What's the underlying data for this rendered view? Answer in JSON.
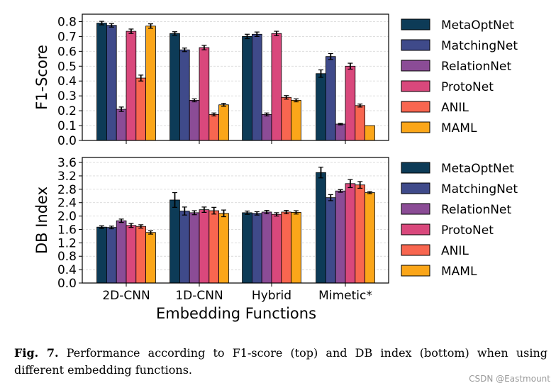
{
  "chart_data": [
    {
      "type": "bar",
      "panel": "top",
      "ylabel": "F1-Score",
      "xlabel": "",
      "ylim": [
        0,
        0.85
      ],
      "yticks": [
        "0.0",
        "0.1",
        "0.2",
        "0.3",
        "0.4",
        "0.5",
        "0.6",
        "0.7",
        "0.8"
      ],
      "grid": true,
      "legend_position": "right",
      "categories": [
        "2D-CNN",
        "1D-CNN",
        "Hybrid",
        "Mimetic*"
      ],
      "series": [
        {
          "name": "MetaOptNet",
          "color": "#0d3b57",
          "values": [
            0.79,
            0.72,
            0.7,
            0.45
          ],
          "errors": [
            0.012,
            0.012,
            0.015,
            0.025
          ]
        },
        {
          "name": "MatchingNet",
          "color": "#3f4a8a",
          "values": [
            0.775,
            0.61,
            0.715,
            0.565
          ],
          "errors": [
            0.012,
            0.012,
            0.015,
            0.02
          ]
        },
        {
          "name": "RelationNet",
          "color": "#8b4c96",
          "values": [
            0.21,
            0.27,
            0.175,
            0.11
          ],
          "errors": [
            0.015,
            0.01,
            0.01,
            0.005
          ]
        },
        {
          "name": "ProtoNet",
          "color": "#d9487c",
          "values": [
            0.735,
            0.625,
            0.72,
            0.5
          ],
          "errors": [
            0.015,
            0.015,
            0.015,
            0.02
          ]
        },
        {
          "name": "ANIL",
          "color": "#f86650",
          "values": [
            0.42,
            0.175,
            0.29,
            0.235
          ],
          "errors": [
            0.02,
            0.01,
            0.012,
            0.01
          ]
        },
        {
          "name": "MAML",
          "color": "#fba619",
          "values": [
            0.77,
            0.24,
            0.27,
            0.1
          ],
          "errors": [
            0.015,
            0.01,
            0.01,
            0.0
          ]
        }
      ]
    },
    {
      "type": "bar",
      "panel": "bottom",
      "ylabel": "DB Index",
      "xlabel": "Embedding Functions",
      "ylim": [
        0,
        3.75
      ],
      "yticks": [
        "0.0",
        "0.4",
        "0.8",
        "1.2",
        "1.6",
        "2.0",
        "2.4",
        "2.8",
        "3.2",
        "3.6"
      ],
      "grid": true,
      "legend_position": "right",
      "categories": [
        "2D-CNN",
        "1D-CNN",
        "Hybrid",
        "Mimetic*"
      ],
      "series": [
        {
          "name": "MetaOptNet",
          "color": "#0d3b57",
          "values": [
            1.67,
            2.48,
            2.1,
            3.3
          ],
          "errors": [
            0.04,
            0.22,
            0.05,
            0.16
          ]
        },
        {
          "name": "MatchingNet",
          "color": "#3f4a8a",
          "values": [
            1.66,
            2.15,
            2.08,
            2.55
          ],
          "errors": [
            0.04,
            0.12,
            0.05,
            0.09
          ]
        },
        {
          "name": "RelationNet",
          "color": "#8b4c96",
          "values": [
            1.86,
            2.1,
            2.12,
            2.75
          ],
          "errors": [
            0.05,
            0.06,
            0.05,
            0.04
          ]
        },
        {
          "name": "ProtoNet",
          "color": "#d9487c",
          "values": [
            1.72,
            2.19,
            2.05,
            2.97
          ],
          "errors": [
            0.06,
            0.08,
            0.05,
            0.12
          ]
        },
        {
          "name": "ANIL",
          "color": "#f86650",
          "values": [
            1.69,
            2.16,
            2.12,
            2.93
          ],
          "errors": [
            0.05,
            0.1,
            0.05,
            0.1
          ]
        },
        {
          "name": "MAML",
          "color": "#fba619",
          "values": [
            1.51,
            2.08,
            2.11,
            2.7
          ],
          "errors": [
            0.05,
            0.1,
            0.05,
            0.03
          ]
        }
      ]
    }
  ],
  "caption": {
    "label": "Fig. 7.",
    "text": " Performance according to F1-score (top) and DB index (bottom) when using different embedding functions."
  },
  "watermark": "CSDN @Eastmount"
}
